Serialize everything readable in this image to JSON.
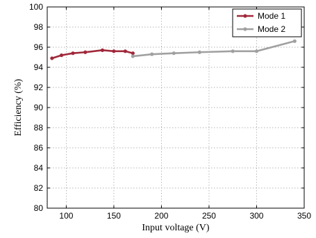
{
  "chart_data": {
    "type": "line",
    "xlabel": "Input voltage (V)",
    "ylabel": "Efficiency (%)",
    "xlim": [
      80,
      350
    ],
    "ylim": [
      80,
      100
    ],
    "x_ticks": [
      100,
      150,
      200,
      250,
      300,
      350
    ],
    "y_ticks": [
      80,
      82,
      84,
      86,
      88,
      90,
      92,
      94,
      96,
      98,
      100
    ],
    "grid": true,
    "legend_position": "top-right",
    "series": [
      {
        "name": "Mode 1",
        "color": "#a0283a",
        "x": [
          85,
          95,
          107,
          120,
          138,
          150,
          162,
          170
        ],
        "y": [
          94.9,
          95.2,
          95.4,
          95.5,
          95.7,
          95.6,
          95.6,
          95.4
        ]
      },
      {
        "name": "Mode 2",
        "color": "#a0a0a0",
        "x": [
          170,
          190,
          213,
          240,
          275,
          300,
          340
        ],
        "y": [
          95.1,
          95.3,
          95.4,
          95.5,
          95.6,
          95.6,
          96.6
        ]
      }
    ]
  }
}
